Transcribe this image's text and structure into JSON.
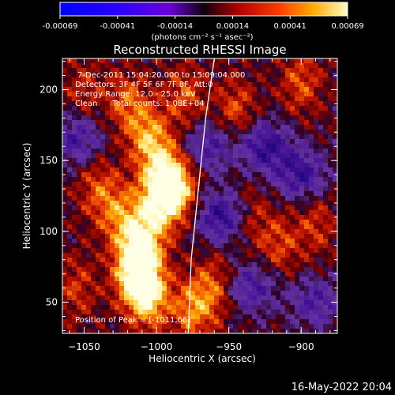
{
  "chart_data": {
    "type": "heatmap",
    "title": "Reconstructed RHESSI Image",
    "colorbar": {
      "ticks": [
        "-0.00069",
        "-0.00041",
        "-0.00014",
        "0.00014",
        "0.00041",
        "0.00069"
      ],
      "units": "(photons cm⁻² s⁻¹ asec⁻²)"
    },
    "xlabel": "Heliocentric X (arcsec)",
    "ylabel": "Heliocentric Y (arcsec)",
    "xlim": [
      -1065,
      -875
    ],
    "ylim": [
      28,
      222
    ],
    "xticks": [
      -1050,
      -1000,
      -950,
      -900
    ],
    "xtick_labels": [
      "−1050",
      "−1000",
      "−950",
      "−900"
    ],
    "yticks": [
      50,
      100,
      150,
      200
    ],
    "ytick_labels": [
      "50",
      "100",
      "150",
      "200"
    ],
    "info_lines": [
      "7-Dec-2011 15:04:20.000 to 15:09:04.000",
      "Detectors: 3F 4F 5F 6F 7F 8F, Att:0",
      "Energy Range: 12.0 - 25.0 keV",
      "Clean      Total counts: 1.08E+04"
    ],
    "peak_label": "Position of Peak = [-1011,66]",
    "limb_points": [
      [
        -960,
        222
      ],
      [
        -966,
        180
      ],
      [
        -972,
        120
      ],
      [
        -976,
        80
      ],
      [
        -978,
        28
      ]
    ],
    "blobs": [
      {
        "x": -1015,
        "y": 70,
        "v": 1.0
      },
      {
        "x": -1005,
        "y": 55,
        "v": 0.9
      },
      {
        "x": -1010,
        "y": 90,
        "v": 0.85
      },
      {
        "x": -1000,
        "y": 120,
        "v": 0.8
      },
      {
        "x": -993,
        "y": 140,
        "v": 0.75
      },
      {
        "x": -985,
        "y": 128,
        "v": 0.7
      },
      {
        "x": -1005,
        "y": 165,
        "v": 0.7
      },
      {
        "x": -1025,
        "y": 110,
        "v": 0.55
      },
      {
        "x": -1040,
        "y": 130,
        "v": 0.45
      },
      {
        "x": -1020,
        "y": 190,
        "v": 0.5
      },
      {
        "x": -980,
        "y": 195,
        "v": 0.45
      },
      {
        "x": -960,
        "y": 60,
        "v": 0.5
      },
      {
        "x": -975,
        "y": 45,
        "v": 0.6
      },
      {
        "x": -945,
        "y": 185,
        "v": 0.45
      },
      {
        "x": -935,
        "y": 110,
        "v": 0.35
      },
      {
        "x": -915,
        "y": 90,
        "v": 0.4
      },
      {
        "x": -890,
        "y": 105,
        "v": 0.35
      },
      {
        "x": -900,
        "y": 205,
        "v": 0.45
      },
      {
        "x": -1055,
        "y": 60,
        "v": 0.35
      },
      {
        "x": -1050,
        "y": 200,
        "v": 0.3
      }
    ],
    "troughs": [
      {
        "x": -955,
        "y": 110,
        "v": 0.8
      },
      {
        "x": -925,
        "y": 160,
        "v": 0.75
      },
      {
        "x": -900,
        "y": 140,
        "v": 0.7
      },
      {
        "x": -1055,
        "y": 165,
        "v": 0.6
      },
      {
        "x": -935,
        "y": 60,
        "v": 0.6
      },
      {
        "x": -890,
        "y": 50,
        "v": 0.55
      },
      {
        "x": -965,
        "y": 160,
        "v": 0.6
      }
    ]
  },
  "footer": {
    "timestamp": "16-May-2022 20:04"
  }
}
